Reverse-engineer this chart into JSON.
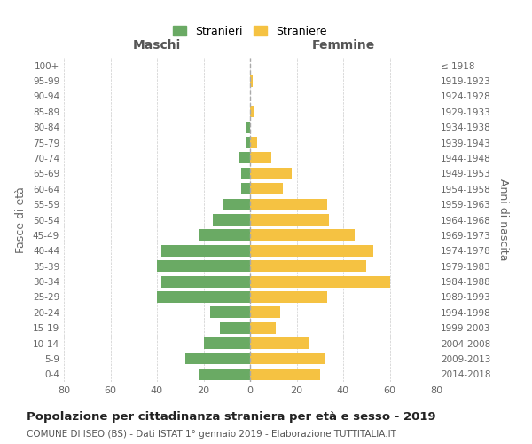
{
  "age_groups": [
    "0-4",
    "5-9",
    "10-14",
    "15-19",
    "20-24",
    "25-29",
    "30-34",
    "35-39",
    "40-44",
    "45-49",
    "50-54",
    "55-59",
    "60-64",
    "65-69",
    "70-74",
    "75-79",
    "80-84",
    "85-89",
    "90-94",
    "95-99",
    "100+"
  ],
  "birth_years": [
    "2014-2018",
    "2009-2013",
    "2004-2008",
    "1999-2003",
    "1994-1998",
    "1989-1993",
    "1984-1988",
    "1979-1983",
    "1974-1978",
    "1969-1973",
    "1964-1968",
    "1959-1963",
    "1954-1958",
    "1949-1953",
    "1944-1948",
    "1939-1943",
    "1934-1938",
    "1929-1933",
    "1924-1928",
    "1919-1923",
    "≤ 1918"
  ],
  "males": [
    22,
    28,
    20,
    13,
    17,
    40,
    38,
    40,
    38,
    22,
    16,
    12,
    4,
    4,
    5,
    2,
    2,
    0,
    0,
    0,
    0
  ],
  "females": [
    30,
    32,
    25,
    11,
    13,
    33,
    60,
    50,
    53,
    45,
    34,
    33,
    14,
    18,
    9,
    3,
    0,
    2,
    0,
    1,
    0
  ],
  "male_color": "#6aaa64",
  "female_color": "#f5c242",
  "male_label": "Stranieri",
  "female_label": "Straniere",
  "title": "Popolazione per cittadinanza straniera per età e sesso - 2019",
  "subtitle": "COMUNE DI ISEO (BS) - Dati ISTAT 1° gennaio 2019 - Elaborazione TUTTITALIA.IT",
  "xlabel_left": "Maschi",
  "xlabel_right": "Femmine",
  "ylabel_left": "Fasce di età",
  "ylabel_right": "Anni di nascita",
  "xlim": 80,
  "background_color": "#ffffff",
  "grid_color": "#cccccc"
}
